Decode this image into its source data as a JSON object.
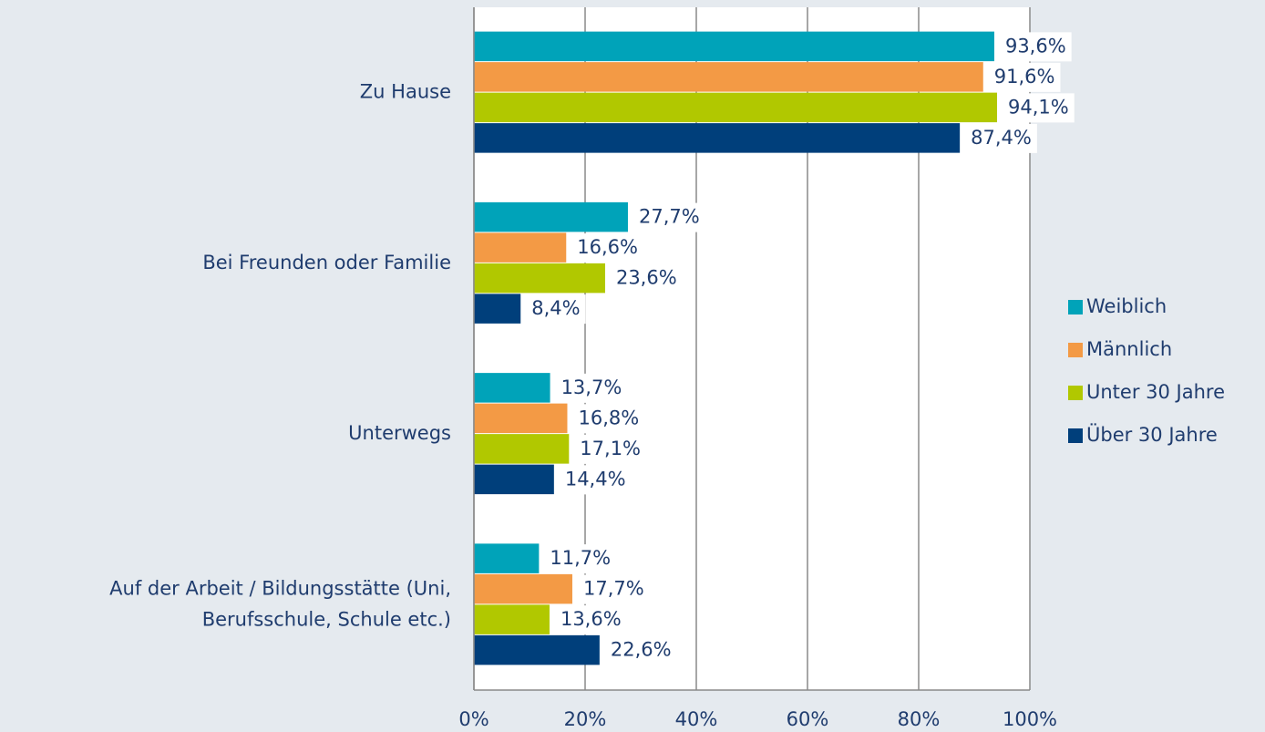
{
  "chart_data": {
    "type": "bar",
    "orientation": "horizontal",
    "categories": [
      "Zu Hause",
      "Bei Freunden oder Familie",
      "Unterwegs",
      "Auf der Arbeit / Bildungsstätte (Uni, Berufsschule, Schule etc.)"
    ],
    "series": [
      {
        "name": "Weiblich",
        "color": "#00a3b9",
        "values": [
          93.6,
          27.7,
          13.7,
          11.7
        ],
        "value_labels": [
          "93,6%",
          "27,7%",
          "13,7%",
          "11,7%"
        ]
      },
      {
        "name": "Männlich",
        "color": "#f39a45",
        "values": [
          91.6,
          16.6,
          16.8,
          17.7
        ],
        "value_labels": [
          "91,6%",
          "16,6%",
          "16,8%",
          "17,7%"
        ]
      },
      {
        "name": "Unter 30 Jahre",
        "color": "#b1c800",
        "values": [
          94.1,
          23.6,
          17.1,
          13.6
        ],
        "value_labels": [
          "94,1%",
          "23,6%",
          "17,1%",
          "13,6%"
        ]
      },
      {
        "name": "Über 30 Jahre",
        "color": "#003f7b",
        "values": [
          87.4,
          8.4,
          14.4,
          22.6
        ],
        "value_labels": [
          "87,4%",
          "8,4%",
          "14,4%",
          "22,6%"
        ]
      }
    ],
    "xlim": [
      0,
      100
    ],
    "xticks": [
      {
        "value": 0,
        "label": "0%"
      },
      {
        "value": 20,
        "label": "20%"
      },
      {
        "value": 40,
        "label": "40%"
      },
      {
        "value": 60,
        "label": "60%"
      },
      {
        "value": 80,
        "label": "80%"
      },
      {
        "value": 100,
        "label": "100%"
      }
    ],
    "grid": true,
    "legend": "right"
  }
}
